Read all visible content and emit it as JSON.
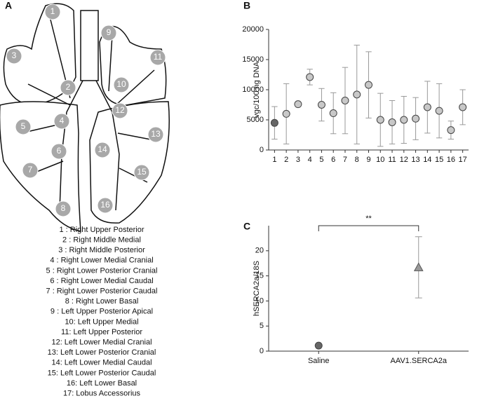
{
  "diagram": {
    "panel_label": "A",
    "markers": [
      "1",
      "2",
      "3",
      "4",
      "5",
      "6",
      "7",
      "8",
      "9",
      "10",
      "11",
      "12",
      "13",
      "14",
      "15",
      "16"
    ],
    "legend": [
      "1 : Right Upper Posterior",
      "2 : Right Middle Medial",
      "3 : Right Middle Posterior",
      "4 : Right Lower Medial Cranial",
      "5 : Right Lower Posterior Cranial",
      "6 : Right Lower Medial Caudal",
      "7 : Right Lower Posterior Caudal",
      "8 : Right Lower Basal",
      "9 : Left Upper Posterior Apical",
      "10: Left Upper Medial",
      "11: Left Upper Posterior",
      "12: Left Lower Medial Cranial",
      "13: Left Lower Posterior Cranial",
      "14: Left Lower Medial Caudal",
      "15: Left Lower Posterior Caudal",
      "16: Left Lower Basal",
      "17: Lobus Accessorius"
    ]
  },
  "chart_data": [
    {
      "type": "scatter",
      "panel_label": "B",
      "y_label": "vgc/100 ng DNA",
      "categories": [
        "1",
        "2",
        "3",
        "4",
        "5",
        "6",
        "7",
        "8",
        "9",
        "10",
        "11",
        "12",
        "13",
        "14",
        "15",
        "16",
        "17"
      ],
      "values": [
        4500,
        6000,
        7600,
        12100,
        7500,
        6100,
        8200,
        9200,
        10800,
        5000,
        4600,
        5000,
        5200,
        7100,
        6500,
        3300,
        7100
      ],
      "errors": [
        2700,
        5000,
        300,
        1300,
        2700,
        3400,
        5500,
        8200,
        5500,
        4400,
        3600,
        3900,
        3500,
        4300,
        4500,
        1500,
        2900
      ],
      "point_colors": [
        "#666666",
        "#c8c8c8",
        "#c8c8c8",
        "#c8c8c8",
        "#c8c8c8",
        "#c8c8c8",
        "#c8c8c8",
        "#c8c8c8",
        "#c8c8c8",
        "#c8c8c8",
        "#c8c8c8",
        "#c8c8c8",
        "#c8c8c8",
        "#c8c8c8",
        "#c8c8c8",
        "#c8c8c8",
        "#c8c8c8"
      ],
      "ylim": [
        0,
        20000
      ],
      "yticks": [
        0,
        5000,
        10000,
        15000,
        20000
      ]
    },
    {
      "type": "scatter",
      "panel_label": "C",
      "y_label": "hSERCA2a/18S",
      "categories": [
        "Saline",
        "AAV1.SERCA2a"
      ],
      "values": [
        1.1,
        16.7
      ],
      "errors": [
        0.2,
        6.1
      ],
      "point_colors": [
        "#666666",
        "#999999"
      ],
      "markers": [
        "circle",
        "triangle"
      ],
      "annotation": "**",
      "ylim": [
        0,
        25
      ],
      "yticks": [
        0,
        5,
        10,
        15,
        20
      ]
    }
  ]
}
